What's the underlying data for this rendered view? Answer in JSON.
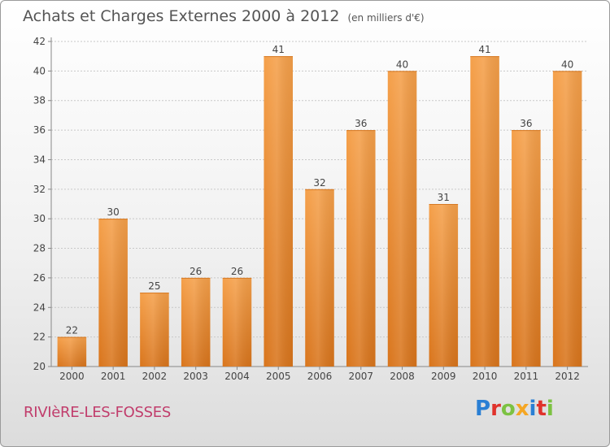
{
  "header": {
    "title": "Achats et Charges Externes 2000 à 2012",
    "subtitle": "(en milliers d'€)"
  },
  "footer": {
    "commune": "RIVIèRE-LES-FOSSES",
    "logo_text": "Proxiti",
    "logo_colors": [
      "#2a7fd4",
      "#e0322b",
      "#7cc242",
      "#f5a623",
      "#2a7fd4",
      "#e0322b",
      "#7cc242"
    ]
  },
  "chart_data": {
    "type": "bar",
    "categories": [
      "2000",
      "2001",
      "2002",
      "2003",
      "2004",
      "2005",
      "2006",
      "2007",
      "2008",
      "2009",
      "2010",
      "2011",
      "2012"
    ],
    "values": [
      22,
      30,
      25,
      26,
      26,
      41,
      32,
      36,
      40,
      31,
      41,
      36,
      40
    ],
    "data_labels": [
      "22",
      "30",
      "25",
      "26",
      "26",
      "41",
      "32",
      "36",
      "40",
      "31",
      "41",
      "36",
      "40"
    ],
    "yticks": [
      "20",
      "22",
      "24",
      "26",
      "28",
      "30",
      "32",
      "34",
      "36",
      "38",
      "40",
      "42"
    ],
    "ylim": [
      20,
      42
    ],
    "grid": true,
    "bar_color": "#f5a04a",
    "bar_color_dark": "#d9751c"
  }
}
